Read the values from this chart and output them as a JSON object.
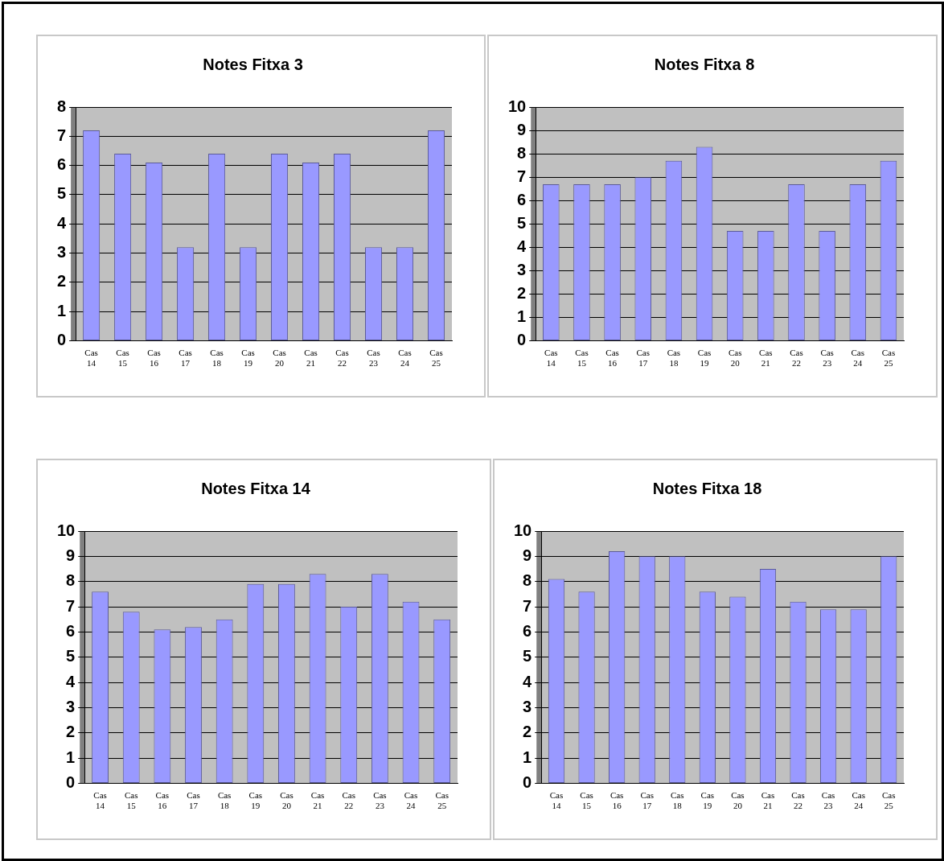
{
  "chart_data": [
    {
      "type": "bar",
      "title": "Notes Fitxa 3",
      "categories": [
        "Cas 14",
        "Cas 15",
        "Cas 16",
        "Cas 17",
        "Cas 18",
        "Cas 19",
        "Cas 20",
        "Cas 21",
        "Cas 22",
        "Cas 23",
        "Cas 24",
        "Cas 25"
      ],
      "values": [
        7.2,
        6.4,
        6.1,
        3.2,
        6.4,
        3.2,
        6.4,
        6.1,
        6.4,
        3.2,
        3.2,
        7.2
      ],
      "color": "#9999ff",
      "ylim": [
        0,
        8
      ],
      "yticks": [
        0,
        1,
        2,
        3,
        4,
        5,
        6,
        7,
        8
      ],
      "grid": "y"
    },
    {
      "type": "bar",
      "title": "Notes Fitxa 8",
      "categories": [
        "Cas 14",
        "Cas 15",
        "Cas 16",
        "Cas 17",
        "Cas 18",
        "Cas 19",
        "Cas 20",
        "Cas 21",
        "Cas 22",
        "Cas 23",
        "Cas 24",
        "Cas 25"
      ],
      "values": [
        6.7,
        6.7,
        6.7,
        7.0,
        7.7,
        8.3,
        4.7,
        4.7,
        6.7,
        4.7,
        6.7,
        7.7
      ],
      "color": "#9999ff",
      "ylim": [
        0,
        10
      ],
      "yticks": [
        0,
        1,
        2,
        3,
        4,
        5,
        6,
        7,
        8,
        9,
        10
      ],
      "grid": "y"
    },
    {
      "type": "bar",
      "title": "Notes Fitxa 14",
      "categories": [
        "Cas 14",
        "Cas 15",
        "Cas 16",
        "Cas 17",
        "Cas 18",
        "Cas 19",
        "Cas 20",
        "Cas 21",
        "Cas 22",
        "Cas 23",
        "Cas 24",
        "Cas 25"
      ],
      "values": [
        7.6,
        6.8,
        6.1,
        6.2,
        6.5,
        7.9,
        7.9,
        8.3,
        7.0,
        8.3,
        7.2,
        6.5
      ],
      "color": "#9999ff",
      "ylim": [
        0,
        10
      ],
      "yticks": [
        0,
        1,
        2,
        3,
        4,
        5,
        6,
        7,
        8,
        9,
        10
      ],
      "grid": "y"
    },
    {
      "type": "bar",
      "title": "Notes Fitxa 18",
      "categories": [
        "Cas 14",
        "Cas 15",
        "Cas 16",
        "Cas 17",
        "Cas 18",
        "Cas 19",
        "Cas 20",
        "Cas 21",
        "Cas 22",
        "Cas 23",
        "Cas 24",
        "Cas 25"
      ],
      "values": [
        8.1,
        7.6,
        9.2,
        9.0,
        9.0,
        7.6,
        7.4,
        8.5,
        7.2,
        6.9,
        6.9,
        9.0
      ],
      "color": "#9999ff",
      "ylim": [
        0,
        10
      ],
      "yticks": [
        0,
        1,
        2,
        3,
        4,
        5,
        6,
        7,
        8,
        9,
        10
      ],
      "grid": "y"
    }
  ]
}
